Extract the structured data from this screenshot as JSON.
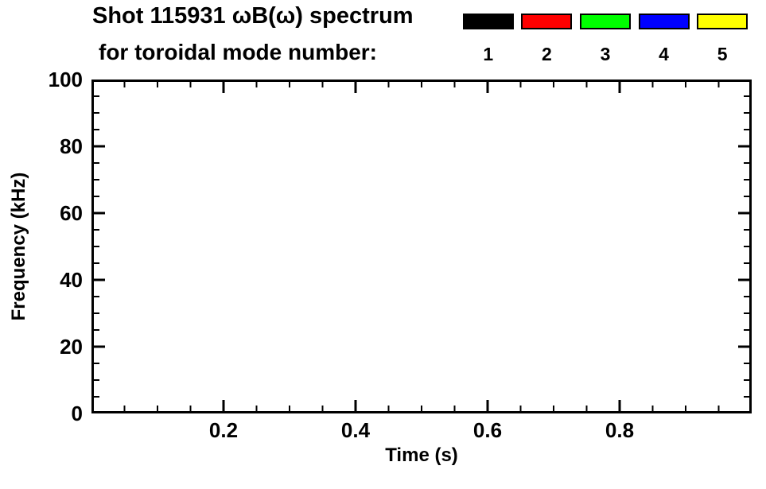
{
  "header": {
    "title_line1": "Shot 115931 ωB(ω) spectrum",
    "title_line2": "for toroidal mode number:"
  },
  "legend": {
    "items": [
      {
        "label": "1",
        "color": "#000000"
      },
      {
        "label": "2",
        "color": "#ff0000"
      },
      {
        "label": "3",
        "color": "#00ff00"
      },
      {
        "label": "4",
        "color": "#0000ff"
      },
      {
        "label": "5",
        "color": "#ffff00"
      }
    ]
  },
  "chart_data": {
    "type": "scatter",
    "title": "Shot 115931 ωB(ω) spectrum for toroidal mode number: 1 2 3 4 5",
    "xlabel": "Time (s)",
    "ylabel": "Frequency (kHz)",
    "xlim": [
      0,
      1.0
    ],
    "ylim": [
      0,
      100
    ],
    "xticks": [
      0.2,
      0.4,
      0.6,
      0.8
    ],
    "xtick_labels": [
      "0.2",
      "0.4",
      "0.6",
      "0.8"
    ],
    "yticks": [
      0,
      20,
      40,
      60,
      80,
      100
    ],
    "ytick_labels": [
      "0",
      "20",
      "40",
      "60",
      "80",
      "100"
    ],
    "x_minor_step": 0.05,
    "y_minor_step": 5,
    "grid": false,
    "legend_position": "top-right",
    "legend_entries": [
      "1",
      "2",
      "3",
      "4",
      "5"
    ],
    "legend_colors": [
      "#000000",
      "#ff0000",
      "#00ff00",
      "#0000ff",
      "#ffff00"
    ],
    "frame_color": "#000000",
    "background": "#ffffff",
    "series": []
  }
}
